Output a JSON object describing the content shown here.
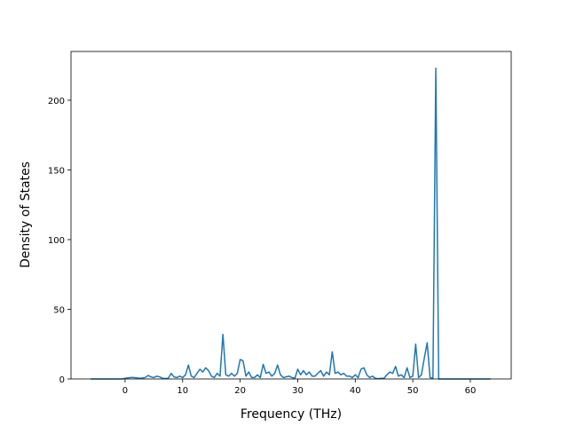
{
  "chart_data": {
    "type": "line",
    "xlabel": "Frequency (THz)",
    "ylabel": "Density of States",
    "x": [
      -6,
      -5.5,
      -5,
      -4.5,
      -4,
      -3.5,
      -3,
      -2.5,
      -2,
      -1.5,
      -1,
      -0.5,
      0,
      0.5,
      1,
      1.5,
      2,
      2.5,
      3,
      3.5,
      4,
      4.5,
      5,
      5.5,
      6,
      6.5,
      7,
      7.5,
      8,
      8.5,
      9,
      9.5,
      10,
      10.5,
      11,
      11.5,
      12,
      12.5,
      13,
      13.5,
      14,
      14.5,
      15,
      15.5,
      16,
      16.5,
      17,
      17.5,
      18,
      18.5,
      19,
      19.5,
      20,
      20.5,
      21,
      21.5,
      22,
      22.5,
      23,
      23.5,
      24,
      24.5,
      25,
      25.5,
      26,
      26.5,
      27,
      27.5,
      28,
      28.5,
      29,
      29.5,
      30,
      30.5,
      31,
      31.5,
      32,
      32.5,
      33,
      33.5,
      34,
      34.5,
      35,
      35.5,
      36,
      36.5,
      37,
      37.5,
      38,
      38.5,
      39,
      39.5,
      40,
      40.5,
      41,
      41.5,
      42,
      42.5,
      43,
      43.5,
      44,
      44.5,
      45,
      45.5,
      46,
      46.5,
      47,
      47.5,
      48,
      48.5,
      49,
      49.5,
      50,
      50.5,
      51,
      51.5,
      52,
      52.5,
      53,
      53.5,
      54,
      54.5,
      55,
      55.5,
      56,
      56.5,
      57,
      57.5,
      58,
      58.5,
      59,
      59.5,
      60,
      60.5,
      61,
      61.5,
      62,
      62.5,
      63,
      63.5
    ],
    "series": [
      {
        "color": "#1f77b4",
        "values": [
          0,
          0,
          0,
          0,
          0,
          0,
          0,
          0,
          0,
          0,
          0,
          0,
          0.5,
          0.8,
          1,
          1,
          0.8,
          0.5,
          0.7,
          1,
          2.5,
          1.5,
          1,
          2,
          1.5,
          0.5,
          0.3,
          0.5,
          4,
          1.5,
          1,
          2,
          1,
          3,
          10,
          2,
          1,
          4,
          7,
          5,
          8,
          6,
          2,
          1,
          4,
          2,
          32,
          3,
          2,
          4,
          2,
          4,
          14,
          13,
          2,
          5,
          1,
          1,
          3,
          1,
          10.5,
          4,
          5,
          2,
          4,
          10,
          3,
          1,
          1.5,
          2,
          1,
          0.5,
          7,
          3,
          6,
          3,
          5,
          2,
          2,
          4,
          6,
          2,
          5,
          3,
          19.5,
          4,
          5,
          3,
          4,
          2,
          2,
          1,
          3,
          1,
          7,
          8,
          3,
          1,
          2,
          0.5,
          0.2,
          0.5,
          0.5,
          3,
          5,
          4,
          9,
          2,
          3,
          1,
          8,
          1,
          2,
          25,
          1,
          3,
          15,
          26,
          1,
          0.5,
          223,
          0,
          0,
          0,
          0,
          0,
          0,
          0,
          0,
          0,
          0,
          0,
          0,
          0,
          0,
          0,
          0,
          0,
          0,
          0
        ]
      }
    ],
    "xlim": [
      -9.4,
      67.1
    ],
    "xticks": [
      0,
      10,
      20,
      30,
      40,
      50,
      60
    ],
    "ylim": [
      0,
      235
    ],
    "yticks": [
      0,
      50,
      100,
      150,
      200
    ]
  }
}
